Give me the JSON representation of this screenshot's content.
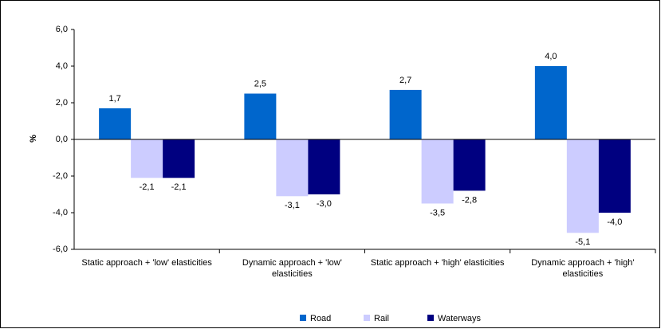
{
  "chart_data": {
    "type": "bar",
    "ylabel": "%",
    "categories": [
      "Static approach + 'low' elasticities",
      "Dynamic approach + 'low' elasticities",
      "Static approach + 'high' elasticities",
      "Dynamic approach + 'high' elasticities"
    ],
    "series": [
      {
        "name": "Road",
        "color": "#0066cc",
        "values": [
          1.7,
          2.5,
          2.7,
          4.0
        ],
        "value_labels": [
          "1,7",
          "2,5",
          "2,7",
          "4,0"
        ]
      },
      {
        "name": "Rail",
        "color": "#ccccff",
        "values": [
          -2.1,
          -3.1,
          -3.5,
          -5.1
        ],
        "value_labels": [
          "-2,1",
          "-3,1",
          "-3,5",
          "-5,1"
        ]
      },
      {
        "name": "Waterways",
        "color": "#000080",
        "values": [
          -2.1,
          -3.0,
          -2.8,
          -4.0
        ],
        "value_labels": [
          "-2,1",
          "-3,0",
          "-2,8",
          "-4,0"
        ]
      }
    ],
    "ylim": [
      -6,
      6
    ],
    "yticks": [
      {
        "value": -6,
        "label": "-6,0"
      },
      {
        "value": -4,
        "label": "-4,0"
      },
      {
        "value": -2,
        "label": "-2,0"
      },
      {
        "value": 0,
        "label": "0,0"
      },
      {
        "value": 2,
        "label": "2,0"
      },
      {
        "value": 4,
        "label": "4,0"
      },
      {
        "value": 6,
        "label": "6,0"
      }
    ],
    "grid": false,
    "legend": "bottom"
  }
}
